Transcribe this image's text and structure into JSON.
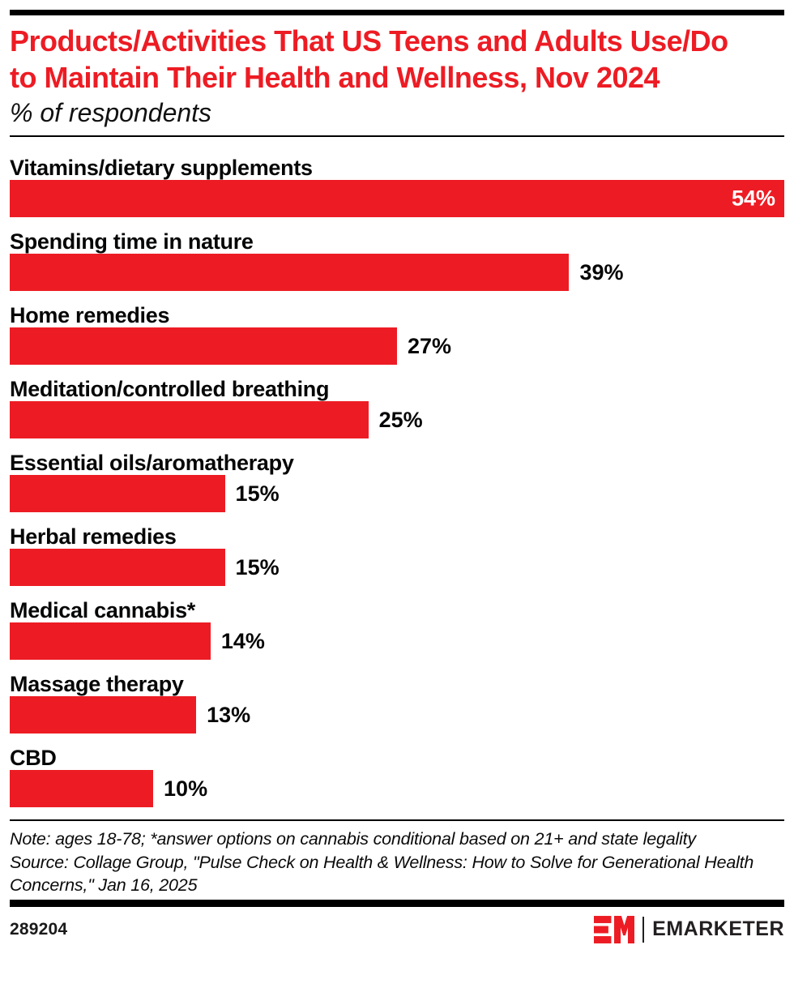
{
  "page": {
    "chart_id": "289204",
    "brand": "EMARKETER"
  },
  "colors": {
    "accent_red": "#ED1C24",
    "text_black": "#000000",
    "value_inside_text": "#FFFFFF"
  },
  "header": {
    "title": "Products/Activities That US Teens and Adults Use/Do to Maintain Their Health and Wellness, Nov 2024",
    "subtitle": "% of respondents"
  },
  "footnotes": {
    "note": "Note: ages 18-78; *answer options on cannabis conditional based on 21+ and state legality",
    "source": "Source: Collage Group, \"Pulse Check on Health & Wellness: How to Solve for Generational Health Concerns,\" Jan 16, 2025"
  },
  "chart_data": {
    "type": "bar",
    "orientation": "horizontal",
    "title": "Products/Activities That US Teens and Adults Use/Do to Maintain Their Health and Wellness, Nov 2024",
    "subtitle": "% of respondents",
    "unit": "% of respondents",
    "xlim": [
      0,
      54
    ],
    "grid": false,
    "legend": false,
    "bar_color": "#ED1C24",
    "categories": [
      "Vitamins/dietary supplements",
      "Spending time in nature",
      "Home remedies",
      "Meditation/controlled breathing",
      "Essential oils/aromatherapy",
      "Herbal remedies",
      "Medical cannabis*",
      "Massage therapy",
      "CBD"
    ],
    "values": [
      54,
      39,
      27,
      25,
      15,
      15,
      14,
      13,
      10
    ],
    "rows": [
      {
        "label": "Vitamins/dietary supplements",
        "value": 54,
        "display": "54%",
        "value_position": "inside"
      },
      {
        "label": "Spending time in nature",
        "value": 39,
        "display": "39%",
        "value_position": "outside"
      },
      {
        "label": "Home remedies",
        "value": 27,
        "display": "27%",
        "value_position": "outside"
      },
      {
        "label": "Meditation/controlled breathing",
        "value": 25,
        "display": "25%",
        "value_position": "outside"
      },
      {
        "label": "Essential oils/aromatherapy",
        "value": 15,
        "display": "15%",
        "value_position": "outside"
      },
      {
        "label": "Herbal remedies",
        "value": 15,
        "display": "15%",
        "value_position": "outside"
      },
      {
        "label": "Medical cannabis*",
        "value": 14,
        "display": "14%",
        "value_position": "outside"
      },
      {
        "label": "Massage therapy",
        "value": 13,
        "display": "13%",
        "value_position": "outside"
      },
      {
        "label": "CBD",
        "value": 10,
        "display": "10%",
        "value_position": "outside"
      }
    ]
  }
}
